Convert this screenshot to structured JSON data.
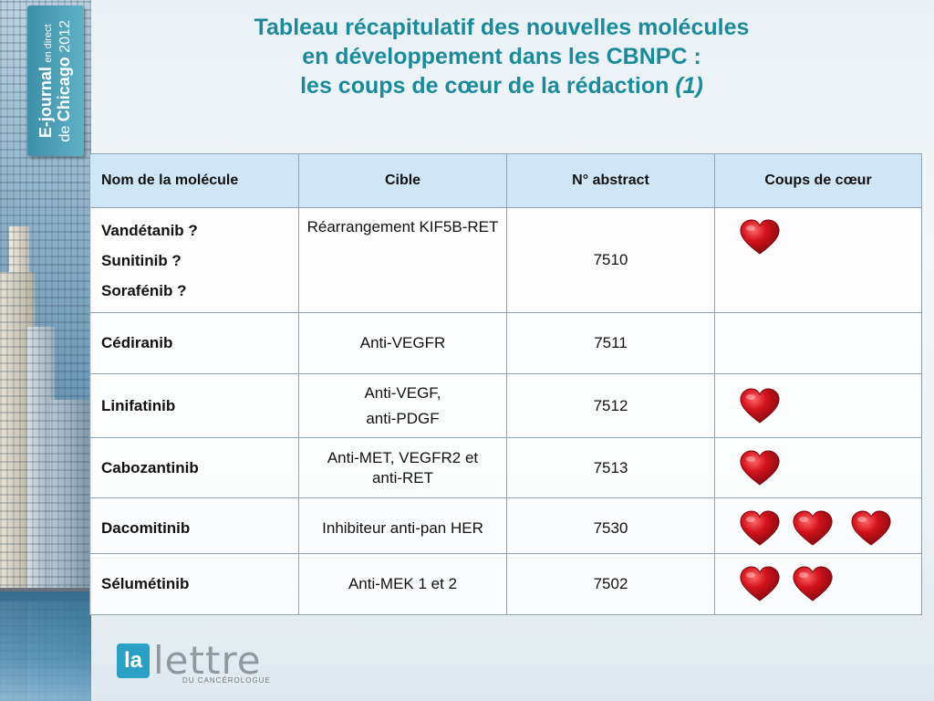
{
  "badge": {
    "brand": "E-journal",
    "small": "en direct",
    "de": "de",
    "city": "Chicago",
    "year": "2012"
  },
  "title": {
    "line1": "Tableau récapitulatif des nouvelles molécules",
    "line2": "en développement dans les CBNPC :",
    "line3": "les coups de cœur de la rédaction",
    "line3_suffix": "(1)"
  },
  "table": {
    "headers": [
      "Nom de la molécule",
      "Cible",
      "N° abstract",
      "Coups de cœur"
    ],
    "rows": [
      {
        "names": [
          "Vandétanib ?",
          "Sunitinib ?",
          "Sorafénib ?"
        ],
        "target": "Réarrangement KIF5B-RET",
        "abstract": "7510",
        "hearts": 1
      },
      {
        "name": "Cédiranib",
        "target": "Anti-VEGFR",
        "abstract": "7511",
        "hearts": 0
      },
      {
        "name": "Linifatinib",
        "target_line1": "Anti-VEGF,",
        "target_line2": "anti-PDGF",
        "abstract": "7512",
        "hearts": 1
      },
      {
        "name": "Cabozantinib",
        "target": "Anti-MET, VEGFR2 et anti-RET",
        "abstract": "7513",
        "hearts": 1
      },
      {
        "name": "Dacomitinib",
        "target": "Inhibiteur anti-pan HER",
        "abstract": "7530",
        "hearts": 3
      }
    ]
  },
  "table2": {
    "rows": [
      {
        "name": "Sélumétinib",
        "target": "Anti-MEK 1 et 2",
        "abstract": "7502",
        "hearts": 2
      }
    ]
  },
  "colors": {
    "title": "#1b8a9b",
    "header_bg": "#cfe6f6",
    "heart": "#d3131c",
    "badge": "#3e8fa9"
  },
  "icons": {
    "heart": "heart-icon"
  },
  "logo": {
    "box": "la",
    "word": "lettre",
    "sub": "DU CANCÉROLOGUE"
  }
}
